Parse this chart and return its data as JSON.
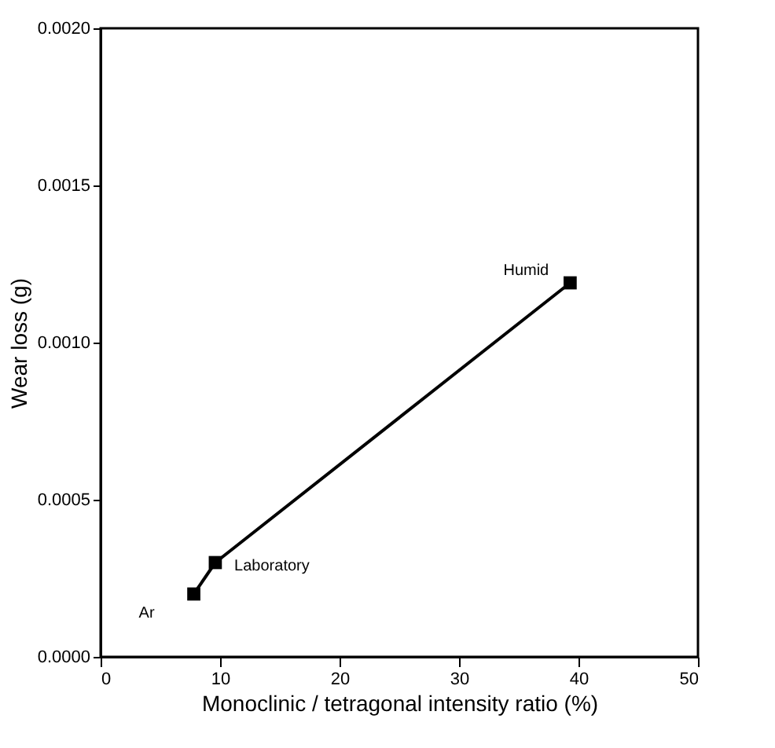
{
  "chart_data": {
    "type": "line",
    "xlabel": "Monoclinic / tetragonal intensity ratio (%)",
    "ylabel": "Wear loss (g)",
    "x": [
      7.8,
      9.6,
      39.3
    ],
    "series": [
      {
        "color": "#000000",
        "values": [
          0.0002,
          0.0003,
          0.00119
        ]
      }
    ],
    "xlim": [
      0,
      50
    ],
    "xticks": [
      0,
      10,
      20,
      30,
      40,
      50
    ],
    "ylim": [
      0,
      0.002
    ],
    "yticks": [
      {
        "value": 0,
        "label": "0.0000"
      },
      0.0005,
      {
        "value": 0.001,
        "label": "0.0010"
      },
      0.0015,
      {
        "value": 0.002,
        "label": "0.0020"
      }
    ],
    "marker": "square",
    "line_style": "solid",
    "grid": false,
    "annotations": [
      {
        "text": "Ar",
        "x": 7.8,
        "y": 0.0002
      },
      {
        "text": "Laboratory",
        "x": 9.6,
        "y": 0.0003
      },
      {
        "text": "Humid",
        "x": 39.3,
        "y": 0.00119
      }
    ]
  }
}
